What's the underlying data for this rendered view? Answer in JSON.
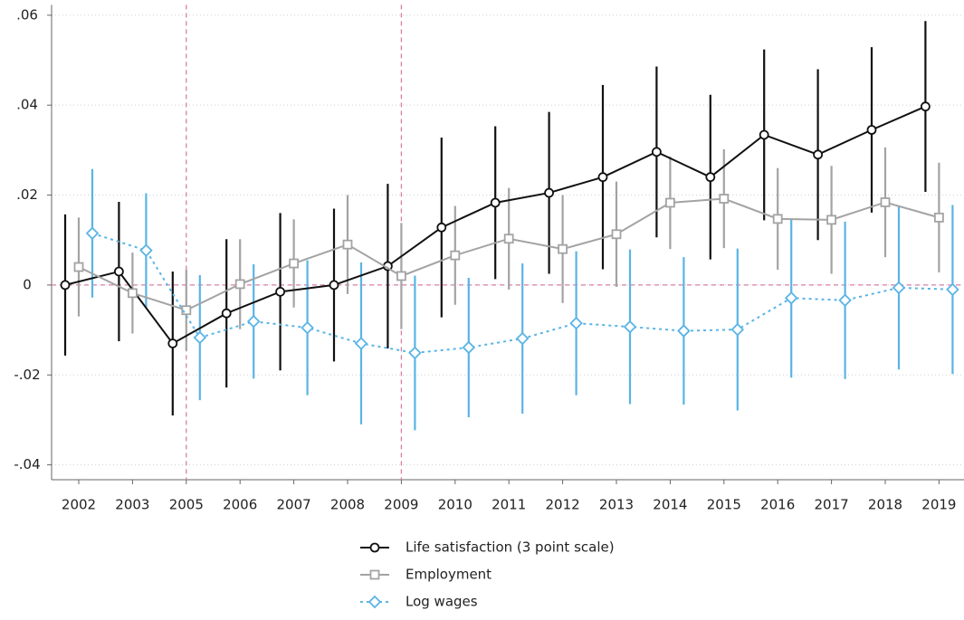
{
  "chart_data": {
    "type": "line",
    "categories": [
      "2002",
      "2003",
      "2005",
      "2006",
      "2007",
      "2008",
      "2009",
      "2010",
      "2011",
      "2012",
      "2013",
      "2014",
      "2015",
      "2016",
      "2017",
      "2018",
      "2019"
    ],
    "ylim": [
      -0.0433,
      0.0623
    ],
    "yticks": [
      {
        "value": 0.06,
        "label": ".06"
      },
      {
        "value": 0.04,
        "label": ".04"
      },
      {
        "value": 0.02,
        "label": ".02"
      },
      0,
      {
        "value": -0.02,
        "label": "-.02"
      },
      {
        "value": -0.04,
        "label": "-.04"
      }
    ],
    "grid": true,
    "reference_y": 0,
    "reference_x": [
      "2005",
      "2009"
    ],
    "legend": "bottom",
    "series": [
      {
        "name": "Life satisfaction (3 point scale)",
        "color": "#111111",
        "marker": "circle",
        "dash": "solid",
        "values": [
          0,
          0.003,
          -0.013,
          -0.0063,
          -0.0015,
          0,
          0.0042,
          0.0128,
          0.0183,
          0.0205,
          0.024,
          0.0296,
          0.024,
          0.0334,
          0.029,
          0.0345,
          0.0397
        ],
        "errors": [
          0.0157,
          0.0155,
          0.016,
          0.0165,
          0.0175,
          0.017,
          0.0183,
          0.02,
          0.017,
          0.018,
          0.0205,
          0.019,
          0.0183,
          0.019,
          0.019,
          0.0184,
          0.019
        ]
      },
      {
        "name": "Employment",
        "color": "#a3a3a3",
        "marker": "square",
        "dash": "solid",
        "values": [
          0.004,
          -0.0018,
          -0.0056,
          0.0002,
          0.0048,
          0.009,
          0.002,
          0.0066,
          0.0103,
          0.008,
          0.0113,
          0.0183,
          0.0192,
          0.0147,
          0.0145,
          0.0184,
          0.015
        ],
        "errors": [
          0.011,
          0.009,
          0.009,
          0.01,
          0.0098,
          0.011,
          0.0118,
          0.011,
          0.0113,
          0.012,
          0.0117,
          0.0103,
          0.011,
          0.0113,
          0.012,
          0.0122,
          0.0122
        ]
      },
      {
        "name": "Log wages",
        "color": "#5ab4e5",
        "marker": "diamond",
        "dash": "dotted",
        "values": [
          0.0115,
          0.0077,
          -0.0117,
          -0.0081,
          -0.0095,
          -0.013,
          -0.0151,
          -0.0139,
          -0.0119,
          -0.0085,
          -0.0093,
          -0.0102,
          -0.0099,
          -0.0029,
          -0.0034,
          -0.0006,
          -0.001
        ],
        "errors": [
          0.0143,
          0.0127,
          0.0139,
          0.0127,
          0.015,
          0.018,
          0.0172,
          0.0155,
          0.0167,
          0.016,
          0.0172,
          0.0164,
          0.018,
          0.0177,
          0.0175,
          0.0182,
          0.0188
        ]
      }
    ]
  }
}
